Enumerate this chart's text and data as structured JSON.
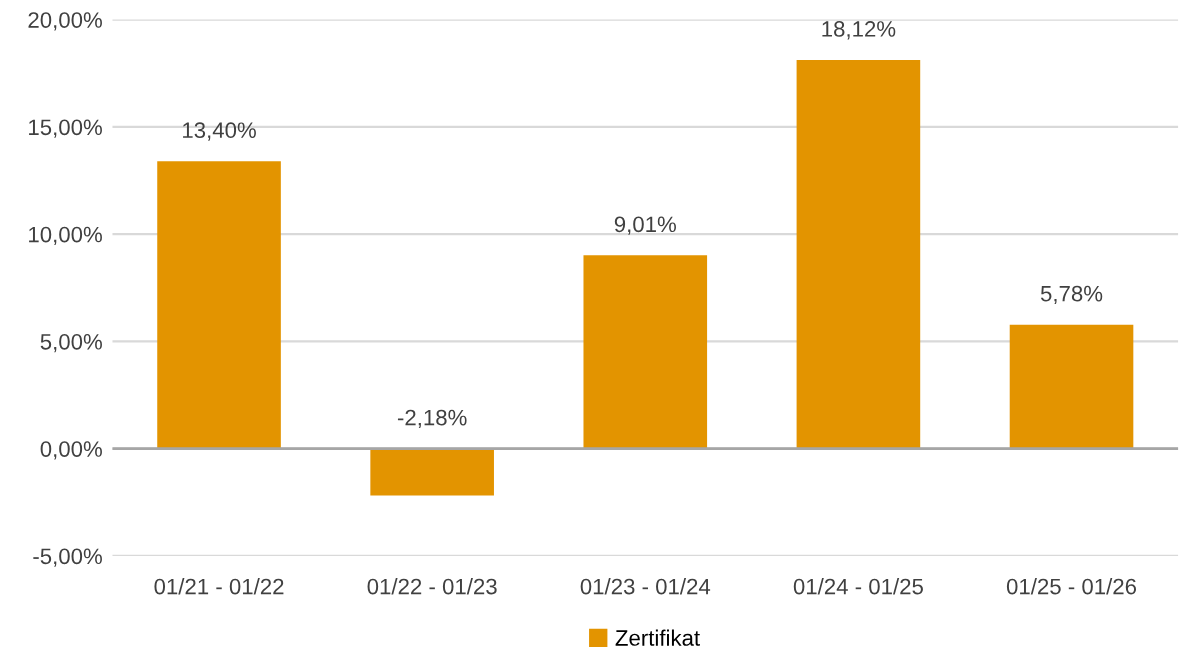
{
  "chart_data": {
    "type": "bar",
    "categories": [
      "01/21 - 01/22",
      "01/22 - 01/23",
      "01/23 - 01/24",
      "01/24 - 01/25",
      "01/25 - 01/26"
    ],
    "series": [
      {
        "name": "Zertifikat",
        "color": "#e39400",
        "values": [
          13.4,
          -2.18,
          9.01,
          18.12,
          5.78
        ],
        "value_labels": [
          "13,40%",
          "-2,18%",
          "9,01%",
          "18,12%",
          "5,78%"
        ]
      }
    ],
    "ylim": [
      -5,
      20
    ],
    "yticks": [
      {
        "value": -5,
        "label": "-5,00%"
      },
      {
        "value": 0,
        "label": "0,00%"
      },
      {
        "value": 5,
        "label": "5,00%"
      },
      {
        "value": 10,
        "label": "10,00%"
      },
      {
        "value": 15,
        "label": "15,00%"
      },
      {
        "value": 20,
        "label": "20,00%"
      }
    ],
    "grid": "y",
    "legend": "bottom"
  }
}
